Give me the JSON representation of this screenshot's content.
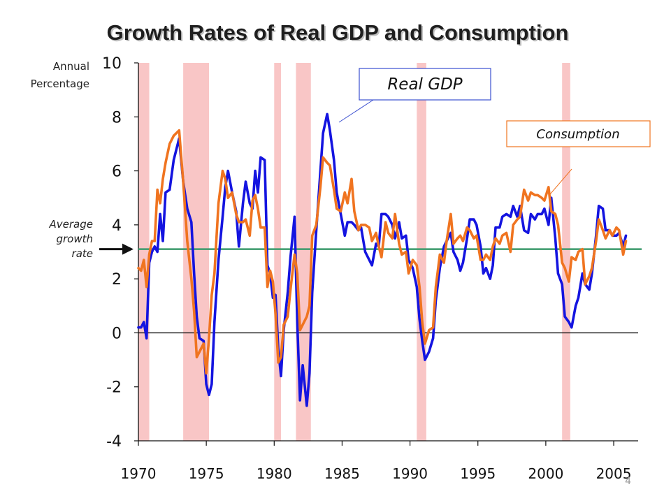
{
  "page_number": "4",
  "chart_data": {
    "type": "line",
    "title": "Growth Rates of Real GDP and Consumption",
    "ylabel_lines": [
      "Annual",
      "Percentage"
    ],
    "ylim": [
      -4,
      10
    ],
    "xlim": [
      1970,
      2006.8
    ],
    "y_ticks": [
      10,
      8,
      6,
      4,
      2,
      0,
      -2,
      -4
    ],
    "y_tick_labels": [
      "10",
      "8",
      "6",
      "4",
      "2",
      "0",
      "-2",
      "-4"
    ],
    "x_ticks": [
      1970,
      1975,
      1980,
      1985,
      1990,
      1995,
      2000,
      2005
    ],
    "x_tick_labels": [
      "1970",
      "1975",
      "1980",
      "1985",
      "1990",
      "1995",
      "2000",
      "2005"
    ],
    "grid": false,
    "legend": "callout boxes",
    "recessions": [
      [
        1970.0,
        1970.8
      ],
      [
        1973.3,
        1975.2
      ],
      [
        1980.0,
        1980.5
      ],
      [
        1981.6,
        1982.7
      ],
      [
        1990.5,
        1991.2
      ],
      [
        2001.2,
        2001.8
      ]
    ],
    "average_growth": {
      "value": 3.1,
      "label_lines": [
        "Average",
        "growth",
        "rate"
      ],
      "color": "#3c9a6c"
    },
    "series": [
      {
        "name": "Real GDP",
        "color": "#1414e0",
        "points": [
          [
            1970.0,
            0.2
          ],
          [
            1970.2,
            0.2
          ],
          [
            1970.4,
            0.4
          ],
          [
            1970.6,
            -0.2
          ],
          [
            1970.8,
            2.6
          ],
          [
            1971.0,
            3.0
          ],
          [
            1971.2,
            3.2
          ],
          [
            1971.4,
            3.0
          ],
          [
            1971.6,
            4.4
          ],
          [
            1971.8,
            3.4
          ],
          [
            1972.0,
            5.2
          ],
          [
            1972.3,
            5.3
          ],
          [
            1972.6,
            6.4
          ],
          [
            1973.0,
            7.2
          ],
          [
            1973.3,
            5.6
          ],
          [
            1973.6,
            4.6
          ],
          [
            1973.9,
            4.1
          ],
          [
            1974.1,
            2.2
          ],
          [
            1974.3,
            0.6
          ],
          [
            1974.5,
            -0.2
          ],
          [
            1974.8,
            -0.3
          ],
          [
            1975.0,
            -1.9
          ],
          [
            1975.2,
            -2.3
          ],
          [
            1975.4,
            -1.9
          ],
          [
            1975.6,
            0.4
          ],
          [
            1975.9,
            2.7
          ],
          [
            1976.2,
            4.3
          ],
          [
            1976.4,
            5.4
          ],
          [
            1976.6,
            6.0
          ],
          [
            1976.9,
            5.2
          ],
          [
            1977.2,
            4.5
          ],
          [
            1977.4,
            3.2
          ],
          [
            1977.7,
            4.8
          ],
          [
            1977.9,
            5.6
          ],
          [
            1978.2,
            4.8
          ],
          [
            1978.4,
            4.6
          ],
          [
            1978.6,
            6.0
          ],
          [
            1978.8,
            5.2
          ],
          [
            1979.0,
            6.5
          ],
          [
            1979.3,
            6.4
          ],
          [
            1979.5,
            2.5
          ],
          [
            1979.7,
            2.2
          ],
          [
            1979.9,
            1.3
          ],
          [
            1980.1,
            1.4
          ],
          [
            1980.3,
            -0.6
          ],
          [
            1980.5,
            -1.6
          ],
          [
            1980.7,
            0.1
          ],
          [
            1981.0,
            1.5
          ],
          [
            1981.2,
            2.8
          ],
          [
            1981.5,
            4.3
          ],
          [
            1981.7,
            0.4
          ],
          [
            1981.9,
            -2.5
          ],
          [
            1982.1,
            -1.2
          ],
          [
            1982.4,
            -2.7
          ],
          [
            1982.6,
            -1.5
          ],
          [
            1982.8,
            1.5
          ],
          [
            1983.1,
            3.8
          ],
          [
            1983.4,
            6.0
          ],
          [
            1983.6,
            7.4
          ],
          [
            1983.9,
            8.1
          ],
          [
            1984.1,
            7.5
          ],
          [
            1984.4,
            6.4
          ],
          [
            1984.6,
            5.2
          ],
          [
            1984.9,
            4.4
          ],
          [
            1985.2,
            3.6
          ],
          [
            1985.4,
            4.1
          ],
          [
            1985.7,
            4.1
          ],
          [
            1985.9,
            4.0
          ],
          [
            1986.2,
            3.8
          ],
          [
            1986.4,
            3.9
          ],
          [
            1986.7,
            3.0
          ],
          [
            1987.0,
            2.7
          ],
          [
            1987.2,
            2.5
          ],
          [
            1987.5,
            3.3
          ],
          [
            1987.7,
            3.2
          ],
          [
            1987.9,
            4.4
          ],
          [
            1988.2,
            4.4
          ],
          [
            1988.4,
            4.3
          ],
          [
            1988.7,
            4.0
          ],
          [
            1988.9,
            3.5
          ],
          [
            1989.2,
            4.1
          ],
          [
            1989.4,
            3.5
          ],
          [
            1989.7,
            3.6
          ],
          [
            1989.9,
            2.7
          ],
          [
            1990.2,
            2.4
          ],
          [
            1990.5,
            1.7
          ],
          [
            1990.7,
            0.5
          ],
          [
            1990.9,
            -0.3
          ],
          [
            1991.1,
            -1.0
          ],
          [
            1991.4,
            -0.7
          ],
          [
            1991.7,
            -0.2
          ],
          [
            1991.9,
            1.2
          ],
          [
            1992.2,
            2.4
          ],
          [
            1992.5,
            3.2
          ],
          [
            1992.7,
            3.4
          ],
          [
            1993.0,
            3.7
          ],
          [
            1993.2,
            3.0
          ],
          [
            1993.5,
            2.7
          ],
          [
            1993.7,
            2.3
          ],
          [
            1993.9,
            2.6
          ],
          [
            1994.2,
            3.5
          ],
          [
            1994.4,
            4.2
          ],
          [
            1994.7,
            4.2
          ],
          [
            1994.9,
            4.0
          ],
          [
            1995.2,
            3.2
          ],
          [
            1995.4,
            2.2
          ],
          [
            1995.6,
            2.4
          ],
          [
            1995.9,
            2.0
          ],
          [
            1996.1,
            2.5
          ],
          [
            1996.3,
            3.9
          ],
          [
            1996.6,
            3.9
          ],
          [
            1996.8,
            4.3
          ],
          [
            1997.1,
            4.4
          ],
          [
            1997.4,
            4.3
          ],
          [
            1997.6,
            4.7
          ],
          [
            1997.9,
            4.3
          ],
          [
            1998.1,
            4.7
          ],
          [
            1998.4,
            3.8
          ],
          [
            1998.7,
            3.7
          ],
          [
            1998.9,
            4.4
          ],
          [
            1999.2,
            4.2
          ],
          [
            1999.4,
            4.4
          ],
          [
            1999.7,
            4.4
          ],
          [
            1999.9,
            4.6
          ],
          [
            2000.2,
            4.0
          ],
          [
            2000.4,
            5.0
          ],
          [
            2000.7,
            3.5
          ],
          [
            2000.9,
            2.2
          ],
          [
            2001.2,
            1.8
          ],
          [
            2001.4,
            0.6
          ],
          [
            2001.7,
            0.4
          ],
          [
            2001.9,
            0.2
          ],
          [
            2002.2,
            1.0
          ],
          [
            2002.4,
            1.3
          ],
          [
            2002.7,
            2.2
          ],
          [
            2002.9,
            1.8
          ],
          [
            2003.2,
            1.6
          ],
          [
            2003.4,
            2.2
          ],
          [
            2003.7,
            3.6
          ],
          [
            2003.9,
            4.7
          ],
          [
            2004.2,
            4.6
          ],
          [
            2004.4,
            3.8
          ],
          [
            2004.7,
            3.8
          ],
          [
            2004.9,
            3.6
          ],
          [
            2005.2,
            3.6
          ],
          [
            2005.4,
            3.7
          ],
          [
            2005.7,
            3.2
          ],
          [
            2005.9,
            3.6
          ]
        ]
      },
      {
        "name": "Consumption",
        "color": "#f07420",
        "points": [
          [
            1970.0,
            2.4
          ],
          [
            1970.2,
            2.3
          ],
          [
            1970.4,
            2.7
          ],
          [
            1970.6,
            1.7
          ],
          [
            1970.8,
            2.9
          ],
          [
            1971.0,
            3.4
          ],
          [
            1971.2,
            3.4
          ],
          [
            1971.4,
            5.3
          ],
          [
            1971.6,
            4.8
          ],
          [
            1971.8,
            5.7
          ],
          [
            1972.0,
            6.3
          ],
          [
            1972.3,
            7.0
          ],
          [
            1972.6,
            7.3
          ],
          [
            1973.0,
            7.5
          ],
          [
            1973.3,
            5.6
          ],
          [
            1973.6,
            3.4
          ],
          [
            1973.9,
            2.0
          ],
          [
            1974.1,
            0.8
          ],
          [
            1974.3,
            -0.9
          ],
          [
            1974.5,
            -0.7
          ],
          [
            1974.8,
            -0.4
          ],
          [
            1975.0,
            -1.5
          ],
          [
            1975.2,
            -0.2
          ],
          [
            1975.4,
            1.4
          ],
          [
            1975.6,
            2.2
          ],
          [
            1975.9,
            4.8
          ],
          [
            1976.2,
            6.0
          ],
          [
            1976.4,
            5.7
          ],
          [
            1976.6,
            5.0
          ],
          [
            1976.9,
            5.2
          ],
          [
            1977.2,
            4.4
          ],
          [
            1977.4,
            4.1
          ],
          [
            1977.7,
            4.1
          ],
          [
            1977.9,
            4.2
          ],
          [
            1978.2,
            3.6
          ],
          [
            1978.4,
            4.9
          ],
          [
            1978.6,
            5.1
          ],
          [
            1978.8,
            4.6
          ],
          [
            1979.0,
            3.9
          ],
          [
            1979.3,
            3.9
          ],
          [
            1979.5,
            1.7
          ],
          [
            1979.7,
            2.3
          ],
          [
            1979.9,
            1.9
          ],
          [
            1980.1,
            0.7
          ],
          [
            1980.3,
            -1.1
          ],
          [
            1980.5,
            -0.9
          ],
          [
            1980.7,
            0.3
          ],
          [
            1981.0,
            0.6
          ],
          [
            1981.2,
            1.6
          ],
          [
            1981.5,
            2.9
          ],
          [
            1981.7,
            2.2
          ],
          [
            1981.9,
            0.1
          ],
          [
            1982.1,
            0.3
          ],
          [
            1982.4,
            0.6
          ],
          [
            1982.6,
            1.0
          ],
          [
            1982.8,
            3.6
          ],
          [
            1983.1,
            4.0
          ],
          [
            1983.4,
            5.4
          ],
          [
            1983.6,
            6.5
          ],
          [
            1983.9,
            6.3
          ],
          [
            1984.1,
            6.2
          ],
          [
            1984.4,
            5.3
          ],
          [
            1984.6,
            4.6
          ],
          [
            1984.9,
            4.5
          ],
          [
            1985.2,
            5.2
          ],
          [
            1985.4,
            4.8
          ],
          [
            1985.7,
            5.7
          ],
          [
            1985.9,
            4.5
          ],
          [
            1986.2,
            3.8
          ],
          [
            1986.4,
            4.0
          ],
          [
            1986.7,
            4.0
          ],
          [
            1987.0,
            3.9
          ],
          [
            1987.2,
            3.4
          ],
          [
            1987.5,
            3.7
          ],
          [
            1987.7,
            3.2
          ],
          [
            1987.9,
            2.8
          ],
          [
            1988.2,
            4.1
          ],
          [
            1988.4,
            3.7
          ],
          [
            1988.7,
            3.5
          ],
          [
            1988.9,
            4.4
          ],
          [
            1989.2,
            3.3
          ],
          [
            1989.4,
            2.9
          ],
          [
            1989.7,
            3.0
          ],
          [
            1989.9,
            2.2
          ],
          [
            1990.2,
            2.7
          ],
          [
            1990.5,
            2.5
          ],
          [
            1990.7,
            1.7
          ],
          [
            1990.9,
            0.4
          ],
          [
            1991.1,
            -0.4
          ],
          [
            1991.4,
            0.1
          ],
          [
            1991.7,
            0.2
          ],
          [
            1991.9,
            1.7
          ],
          [
            1992.2,
            2.9
          ],
          [
            1992.5,
            2.6
          ],
          [
            1992.7,
            3.4
          ],
          [
            1993.0,
            4.4
          ],
          [
            1993.2,
            3.3
          ],
          [
            1993.5,
            3.5
          ],
          [
            1993.7,
            3.6
          ],
          [
            1993.9,
            3.4
          ],
          [
            1994.2,
            3.9
          ],
          [
            1994.4,
            3.8
          ],
          [
            1994.7,
            3.5
          ],
          [
            1994.9,
            3.6
          ],
          [
            1995.2,
            2.7
          ],
          [
            1995.4,
            2.7
          ],
          [
            1995.6,
            2.9
          ],
          [
            1995.9,
            2.7
          ],
          [
            1996.1,
            3.2
          ],
          [
            1996.3,
            3.5
          ],
          [
            1996.6,
            3.3
          ],
          [
            1996.8,
            3.6
          ],
          [
            1997.1,
            3.7
          ],
          [
            1997.4,
            3.0
          ],
          [
            1997.6,
            4.0
          ],
          [
            1997.9,
            4.2
          ],
          [
            1998.1,
            4.3
          ],
          [
            1998.4,
            5.3
          ],
          [
            1998.7,
            4.9
          ],
          [
            1998.9,
            5.2
          ],
          [
            1999.2,
            5.1
          ],
          [
            1999.4,
            5.1
          ],
          [
            1999.7,
            5.0
          ],
          [
            1999.9,
            4.9
          ],
          [
            2000.2,
            5.4
          ],
          [
            2000.4,
            4.5
          ],
          [
            2000.7,
            4.4
          ],
          [
            2000.9,
            4.0
          ],
          [
            2001.2,
            2.6
          ],
          [
            2001.4,
            2.4
          ],
          [
            2001.7,
            1.9
          ],
          [
            2001.9,
            2.8
          ],
          [
            2002.2,
            2.7
          ],
          [
            2002.4,
            3.0
          ],
          [
            2002.7,
            3.1
          ],
          [
            2002.9,
            1.8
          ],
          [
            2003.2,
            2.1
          ],
          [
            2003.4,
            2.4
          ],
          [
            2003.7,
            3.4
          ],
          [
            2003.9,
            4.2
          ],
          [
            2004.2,
            3.8
          ],
          [
            2004.4,
            3.5
          ],
          [
            2004.7,
            3.8
          ],
          [
            2004.9,
            3.6
          ],
          [
            2005.2,
            3.9
          ],
          [
            2005.4,
            3.8
          ],
          [
            2005.7,
            2.9
          ],
          [
            2005.9,
            3.4
          ]
        ]
      }
    ]
  }
}
